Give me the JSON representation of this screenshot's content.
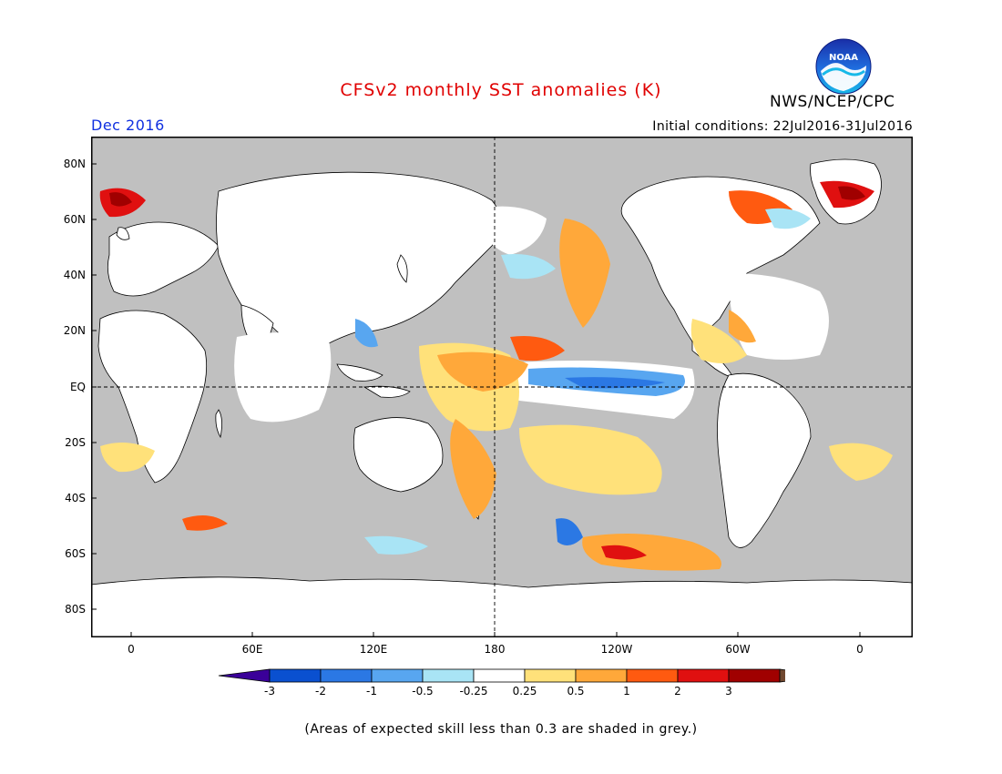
{
  "header": {
    "title": "CFSv2 monthly SST anomalies (K)",
    "organization": "NWS/NCEP/CPC",
    "logo_text": "NOAA",
    "forecast_month": "Dec 2016",
    "initial_conditions": "Initial conditions: 22Jul2016-31Jul2016"
  },
  "map": {
    "lat_labels": [
      "80N",
      "60N",
      "40N",
      "20N",
      "EQ",
      "20S",
      "40S",
      "60S",
      "80S"
    ],
    "lon_labels": [
      "0",
      "60E",
      "120E",
      "180",
      "120W",
      "60W",
      "0"
    ],
    "background_color": "#c0c0c0",
    "land_color": "#ffffff"
  },
  "colorbar": {
    "ticks": [
      "-3",
      "-2",
      "-1",
      "-0.5",
      "-0.25",
      "0.25",
      "0.5",
      "1",
      "2",
      "3"
    ],
    "colors": [
      "#3a0099",
      "#0a50d0",
      "#2b78e4",
      "#58a6f0",
      "#a9e4f5",
      "#ffffff",
      "#ffe17a",
      "#ffa83a",
      "#ff5a10",
      "#e01010",
      "#a00000",
      "#704830"
    ]
  },
  "footnote": "(Areas of expected skill less than 0.3 are shaded in grey.)"
}
